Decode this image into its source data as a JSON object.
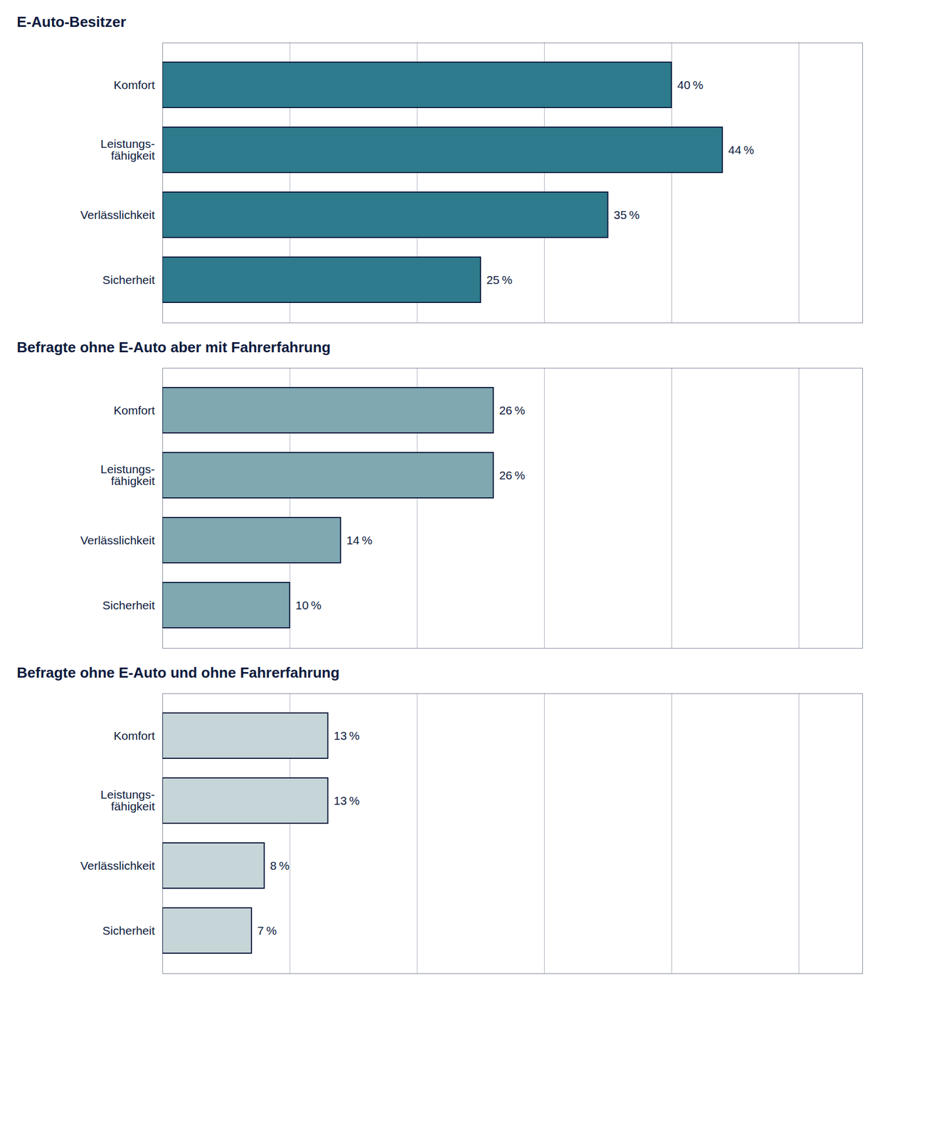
{
  "chart_data": [
    {
      "type": "bar",
      "orientation": "horizontal",
      "title": "E-Auto-Besitzer",
      "categories": [
        "Komfort",
        "Leistungs-\nfähigkeit",
        "Verlässlichkeit",
        "Sicherheit"
      ],
      "values": [
        40,
        44,
        35,
        25
      ],
      "value_labels": [
        "40 %",
        "44 %",
        "35 %",
        "25 %"
      ],
      "color": "#2d7b8c",
      "xlim": [
        0,
        55
      ],
      "xticks": [
        10,
        20,
        30,
        40,
        50
      ],
      "grid": true,
      "data_labels": true,
      "tick_labels": "y"
    },
    {
      "type": "bar",
      "orientation": "horizontal",
      "title": "Befragte ohne E-Auto aber mit Fahrerfahrung",
      "categories": [
        "Komfort",
        "Leistungs-\nfähigkeit",
        "Verlässlichkeit",
        "Sicherheit"
      ],
      "values": [
        26,
        26,
        14,
        10
      ],
      "value_labels": [
        "26 %",
        "26 %",
        "14 %",
        "10 %"
      ],
      "color": "#7fa8b0",
      "xlim": [
        0,
        55
      ],
      "xticks": [
        10,
        20,
        30,
        40,
        50
      ],
      "grid": true,
      "data_labels": true,
      "tick_labels": "y"
    },
    {
      "type": "bar",
      "orientation": "horizontal",
      "title": "Befragte ohne E-Auto und ohne Fahrerfahrung",
      "categories": [
        "Komfort",
        "Leistungs-\nfähigkeit",
        "Verlässlichkeit",
        "Sicherheit"
      ],
      "values": [
        13,
        13,
        8,
        7
      ],
      "value_labels": [
        "13 %",
        "13 %",
        "8 %",
        "7 %"
      ],
      "color": "#c5d5d8",
      "xlim": [
        0,
        55
      ],
      "xticks": [
        10,
        20,
        30,
        40,
        50
      ],
      "grid": true,
      "data_labels": true,
      "tick_labels": "y"
    }
  ]
}
